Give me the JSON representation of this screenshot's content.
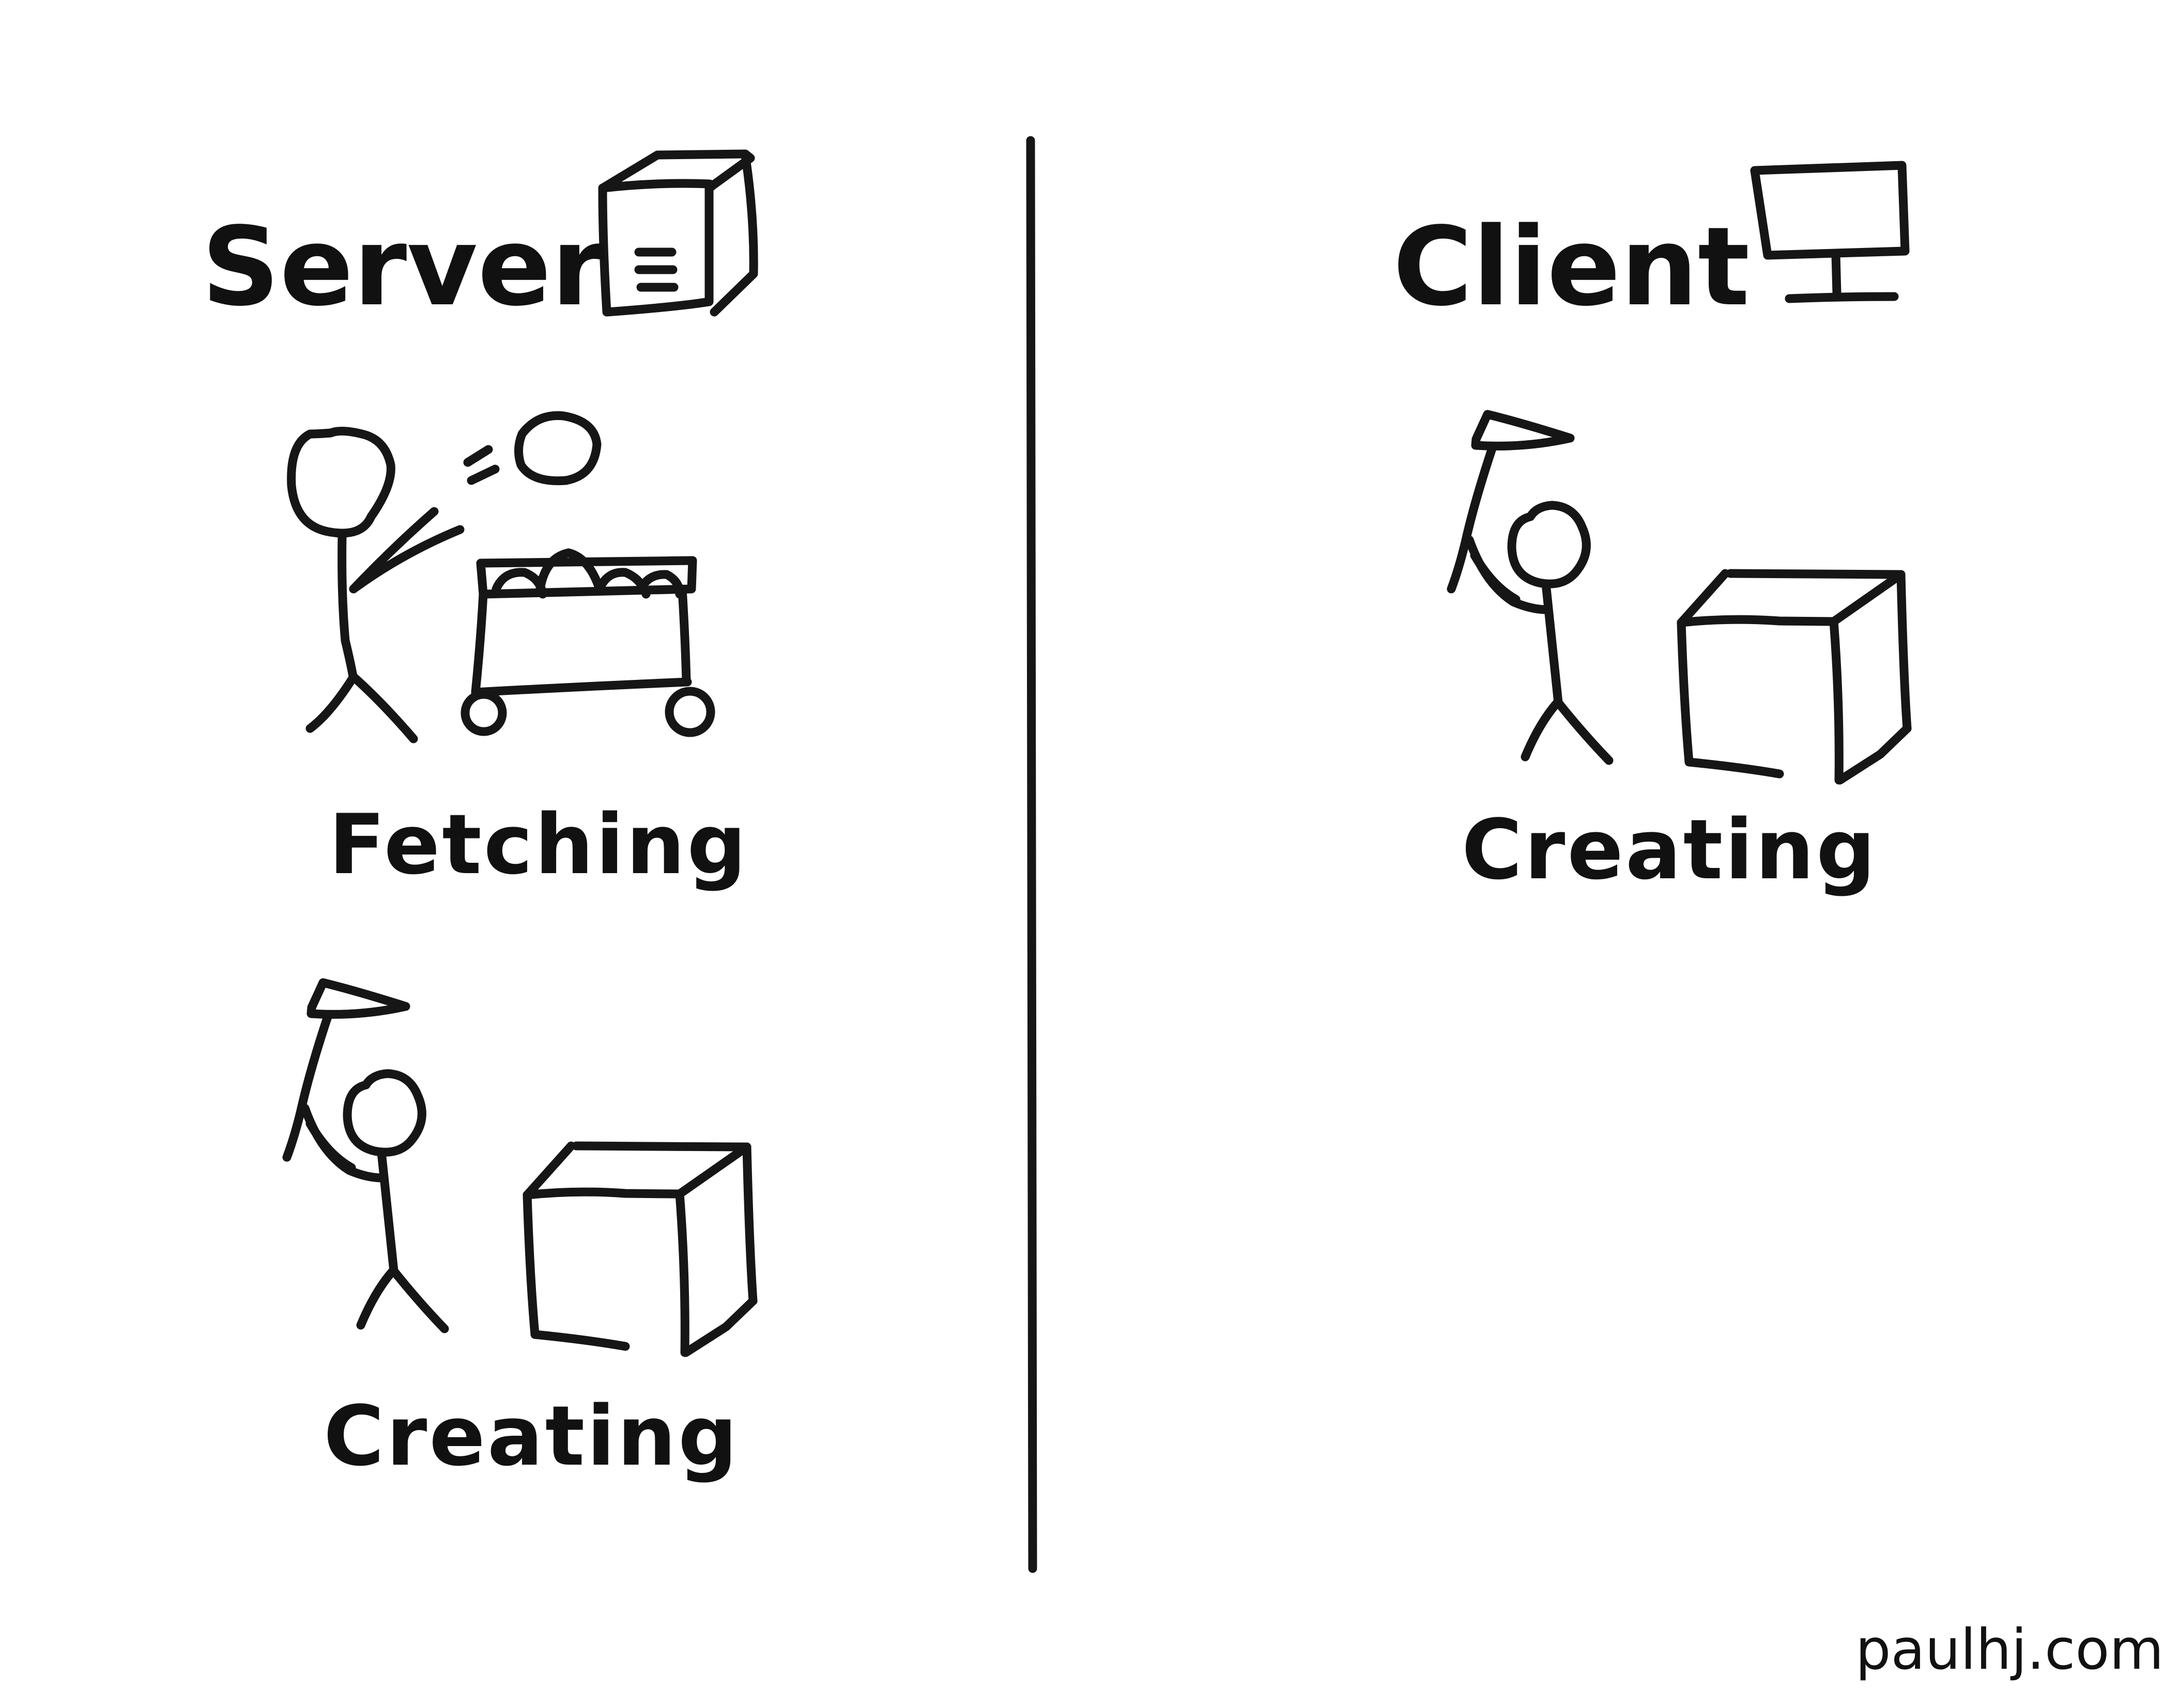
{
  "server": {
    "heading": "Server",
    "icon": "server-tower-icon",
    "activities": [
      {
        "label": "Fetching",
        "icon": "stick-figure-fetching-cart-icon"
      },
      {
        "label": "Creating",
        "icon": "stick-figure-hammering-box-icon"
      }
    ]
  },
  "client": {
    "heading": "Client",
    "icon": "monitor-icon",
    "activities": [
      {
        "label": "Creating",
        "icon": "stick-figure-hammering-box-icon"
      }
    ]
  },
  "credit": "paulhj.com",
  "colors": {
    "ink": "#161616",
    "background": "#ffffff"
  }
}
